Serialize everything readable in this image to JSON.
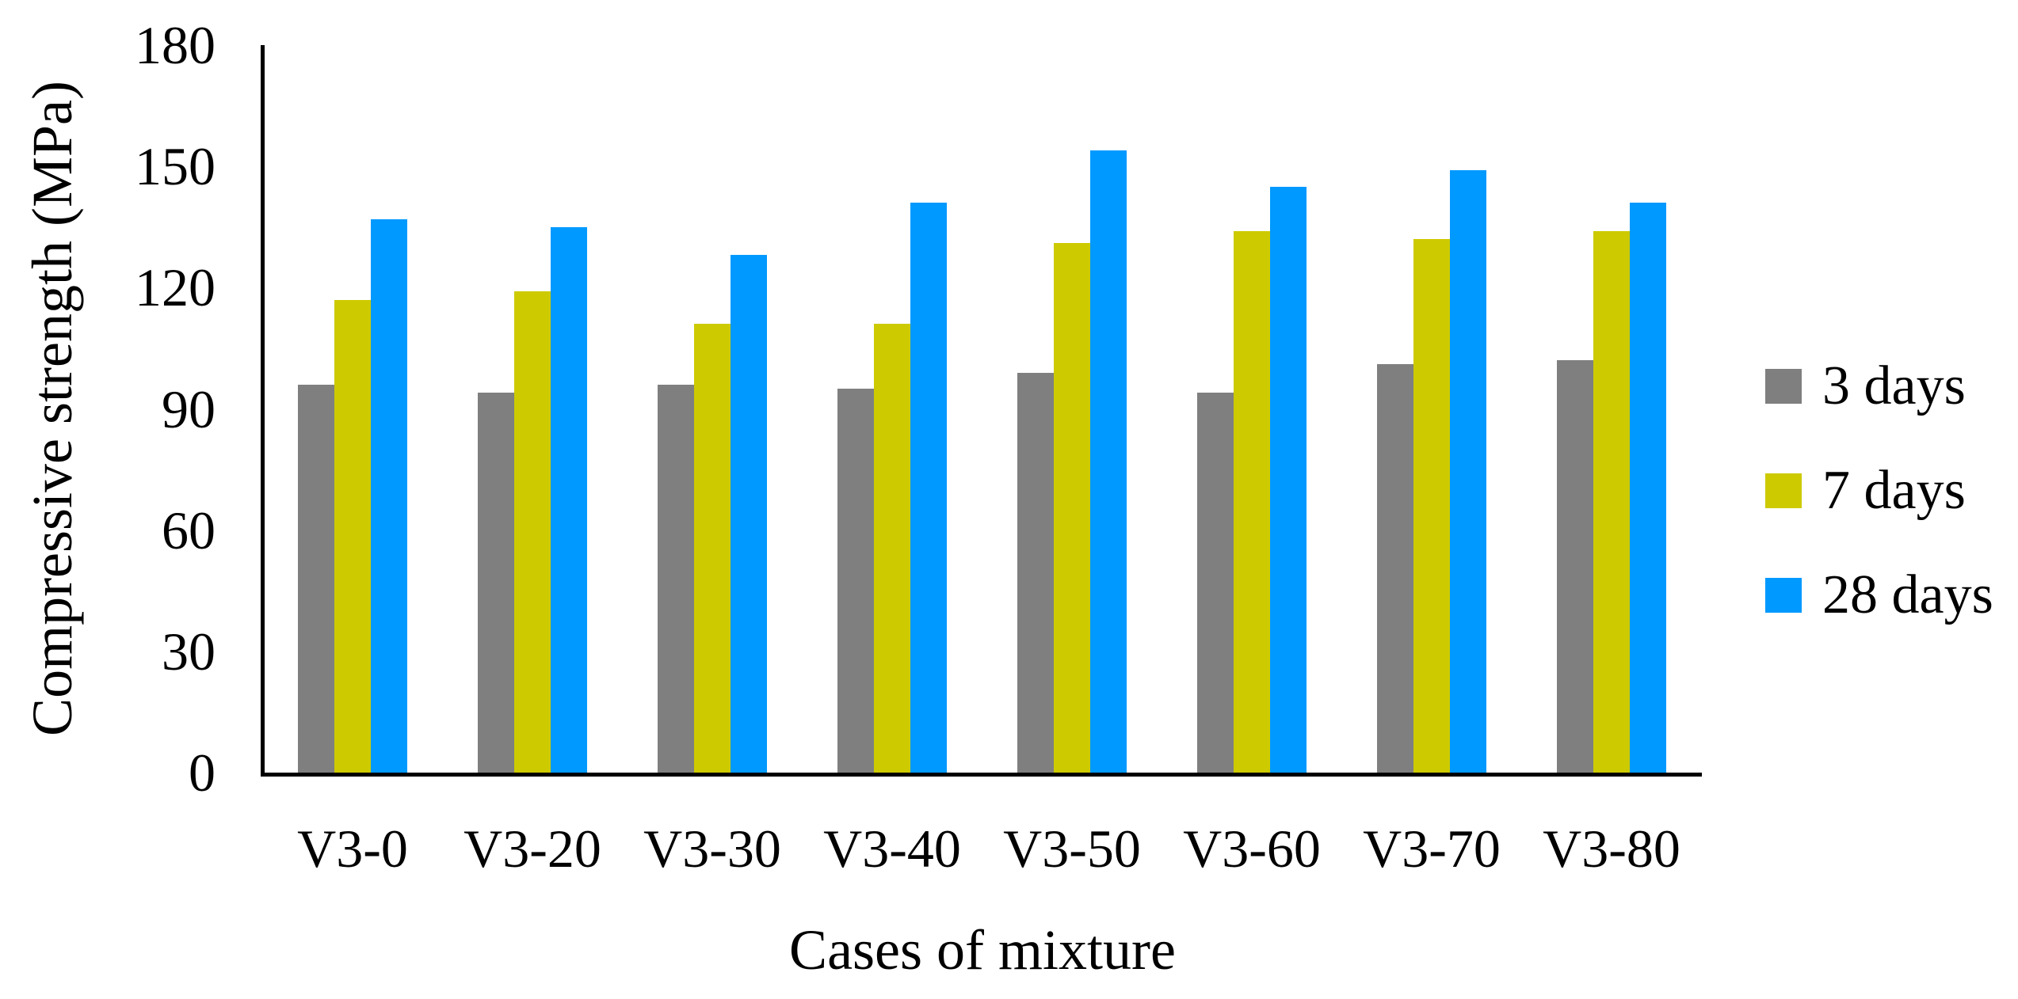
{
  "figure": {
    "background": "#FFFFFF",
    "text_color": "#000000",
    "axis_color": "#000000"
  },
  "chart_data": {
    "type": "bar",
    "title": "",
    "xlabel": "Cases of mixture",
    "ylabel": "Compressive strength (MPa)",
    "categories": [
      "V3-0",
      "V3-20",
      "V3-30",
      "V3-40",
      "V3-50",
      "V3-60",
      "V3-70",
      "V3-80"
    ],
    "series": [
      {
        "name": "3 days",
        "color": "#7F7F7F",
        "values": [
          96,
          94,
          96,
          95,
          99,
          94,
          101,
          102
        ]
      },
      {
        "name": "7 days",
        "color": "#CDCA00",
        "values": [
          117,
          119,
          111,
          111,
          131,
          134,
          132,
          134
        ]
      },
      {
        "name": "28 days",
        "color": "#0099FF",
        "values": [
          137,
          135,
          128,
          141,
          154,
          145,
          149,
          141
        ]
      }
    ],
    "ylim": [
      0,
      180
    ],
    "yticks": [
      0,
      30,
      60,
      90,
      120,
      150,
      180
    ],
    "grid": false,
    "legend_position": "right",
    "legend_labels": [
      "3 days",
      "7 days",
      "28 days"
    ]
  }
}
